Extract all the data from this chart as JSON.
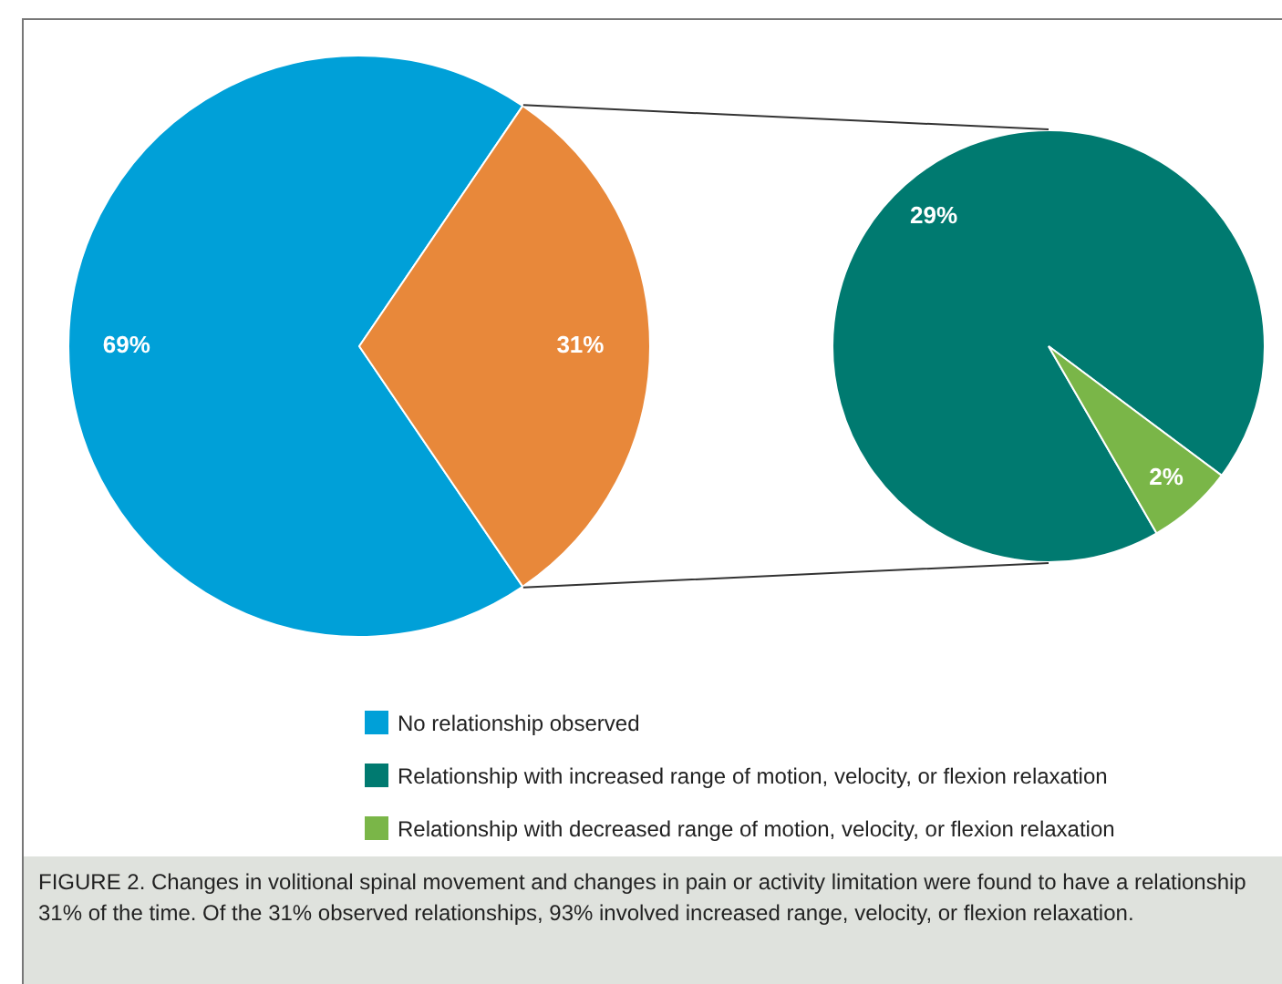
{
  "chart_data": [
    {
      "type": "pie",
      "categories": [
        "No relationship observed",
        null
      ],
      "values": [
        69,
        31
      ],
      "colors": [
        "#00a0d8",
        "#e8883a"
      ],
      "value_labels": [
        "69%",
        "31%"
      ],
      "legend": "bottom",
      "annotations": [
        "FIGURE 2. Changes in volitional spinal movement and changes in pain or activity limitation were found to have a relationship 31% of the time. Of the 31% observed relationships, 93% involved increased range, velocity, or flexion relaxation."
      ]
    },
    {
      "type": "pie",
      "categories": [
        "Relationship with increased range of motion, velocity, or flexion relaxation",
        "Relationship with decreased range of motion, velocity, or flexion relaxation"
      ],
      "values": [
        29,
        2
      ],
      "colors": [
        "#007a70",
        "#7ab648"
      ],
      "value_labels": [
        "29%",
        "2%"
      ],
      "legend": "bottom"
    }
  ]
}
